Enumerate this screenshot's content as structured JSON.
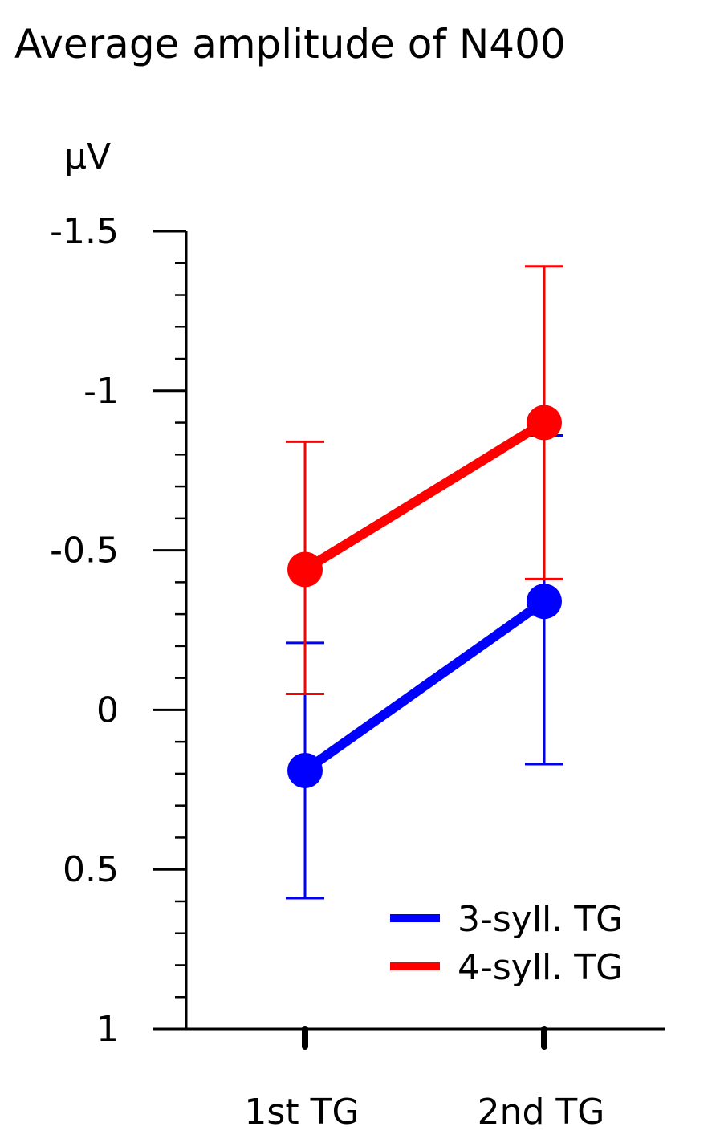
{
  "chart_data": {
    "type": "line",
    "title": "Average amplitude of N400",
    "ylabel": "µV",
    "xlabel": "",
    "y_axis_inverted": true,
    "ylim": [
      1,
      -1.5
    ],
    "yticks": [
      -1.5,
      -1,
      -0.5,
      0,
      0.5,
      1
    ],
    "ytick_labels": [
      "-1.5",
      "-1",
      "-0.5",
      "0",
      "0.5",
      "1"
    ],
    "y_minor_tick_step": 0.1,
    "categories": [
      "1st TG",
      "2nd TG"
    ],
    "grid": false,
    "legend_position": "bottom-right",
    "series": [
      {
        "name": "3-syll. TG",
        "color": "#0000ff",
        "values": [
          0.19,
          -0.34
        ],
        "error_upper": [
          -0.21,
          -0.86
        ],
        "error_lower": [
          0.59,
          0.17
        ]
      },
      {
        "name": "4-syll. TG",
        "color": "#ff0000",
        "values": [
          -0.44,
          -0.9
        ],
        "error_upper": [
          -0.84,
          -1.39
        ],
        "error_lower": [
          -0.05,
          -0.41
        ]
      }
    ]
  }
}
